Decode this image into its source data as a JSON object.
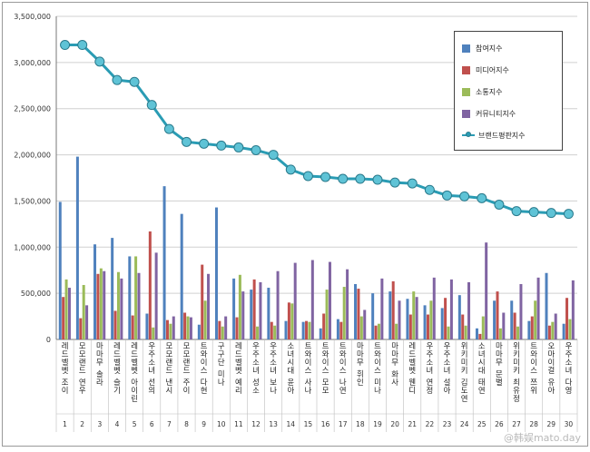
{
  "chart_data": {
    "type": "bar",
    "title": "",
    "xlabel": "",
    "ylabel": "",
    "ylim": [
      0,
      3500000
    ],
    "yticks": [
      "0",
      "500,000",
      "1,000,000",
      "1,500,000",
      "2,000,000",
      "2,500,000",
      "3,000,000",
      "3,500,000"
    ],
    "grid": true,
    "legend_position": "top-right",
    "categories": [
      "레드벨벳 조이",
      "모모랜드 연우",
      "마마무 솔라",
      "레드벨벳 슬기",
      "레드벨벳 아이린",
      "우주소녀 선의",
      "모모랜드 낸시",
      "모모랜드 주이",
      "트와이스 다현",
      "구구단 미나",
      "레드벨벳 예리",
      "우주소녀 성소",
      "우주소녀 보나",
      "소녀시대 윤아",
      "트와이스 사나",
      "트와이스 모모",
      "트와이스 나연",
      "마마무 휘인",
      "트와이스 미나",
      "마마무 화사",
      "레드벨벳 웬디",
      "우주소녀 연정",
      "우주소녀 설아",
      "위키미키 김도연",
      "소녀시대 태연",
      "마마무 문별",
      "위키미키 최유정",
      "트와이스 쯔위",
      "오마이걸 유아",
      "우주소녀 다영"
    ],
    "rank_labels": [
      "1",
      "2",
      "3",
      "4",
      "5",
      "6",
      "7",
      "8",
      "9",
      "10",
      "11",
      "12",
      "13",
      "14",
      "15",
      "16",
      "17",
      "18",
      "19",
      "20",
      "21",
      "22",
      "23",
      "24",
      "25",
      "26",
      "27",
      "28",
      "29",
      "30"
    ],
    "series": [
      {
        "name": "참여지수",
        "kind": "bar",
        "color": "#4f81bd",
        "values": [
          1490000,
          1980000,
          1030000,
          1100000,
          900000,
          280000,
          1660000,
          1360000,
          160000,
          1430000,
          660000,
          540000,
          560000,
          200000,
          190000,
          120000,
          220000,
          600000,
          500000,
          520000,
          440000,
          370000,
          340000,
          480000,
          120000,
          420000,
          420000,
          200000,
          720000,
          170000
        ]
      },
      {
        "name": "미디어지수",
        "kind": "bar",
        "color": "#c0504d",
        "values": [
          460000,
          230000,
          710000,
          310000,
          260000,
          1170000,
          210000,
          290000,
          810000,
          200000,
          240000,
          650000,
          190000,
          400000,
          200000,
          280000,
          190000,
          550000,
          150000,
          630000,
          270000,
          270000,
          450000,
          270000,
          60000,
          520000,
          290000,
          250000,
          150000,
          450000
        ]
      },
      {
        "name": "소통지수",
        "kind": "bar",
        "color": "#9bbb59",
        "values": [
          650000,
          590000,
          770000,
          730000,
          900000,
          130000,
          170000,
          250000,
          420000,
          140000,
          700000,
          140000,
          150000,
          390000,
          190000,
          540000,
          570000,
          250000,
          170000,
          170000,
          520000,
          420000,
          140000,
          150000,
          250000,
          120000,
          140000,
          420000,
          190000,
          220000
        ]
      },
      {
        "name": "커뮤니티지수",
        "kind": "bar",
        "color": "#8064a2",
        "values": [
          560000,
          370000,
          740000,
          660000,
          720000,
          940000,
          250000,
          240000,
          710000,
          250000,
          520000,
          620000,
          740000,
          830000,
          860000,
          840000,
          760000,
          320000,
          660000,
          420000,
          460000,
          670000,
          650000,
          620000,
          1050000,
          290000,
          600000,
          670000,
          280000,
          640000
        ]
      },
      {
        "name": "브랜드평판지수",
        "kind": "line",
        "color": "#2a9cb4",
        "values": [
          3190000,
          3190000,
          3010000,
          2810000,
          2790000,
          2540000,
          2280000,
          2140000,
          2120000,
          2100000,
          2080000,
          2050000,
          2000000,
          1840000,
          1770000,
          1760000,
          1740000,
          1740000,
          1730000,
          1700000,
          1690000,
          1620000,
          1560000,
          1550000,
          1530000,
          1460000,
          1390000,
          1380000,
          1370000,
          1360000
        ]
      }
    ]
  },
  "legend": {
    "items": [
      {
        "label": "참여지수",
        "color": "#4f81bd"
      },
      {
        "label": "미디어지수",
        "color": "#c0504d"
      },
      {
        "label": "소통지수",
        "color": "#9bbb59"
      },
      {
        "label": "커뮤니티지수",
        "color": "#8064a2"
      },
      {
        "label": "브랜드평판지수",
        "color": "#2a9cb4"
      }
    ]
  },
  "watermark": "@韩娱mato.day"
}
